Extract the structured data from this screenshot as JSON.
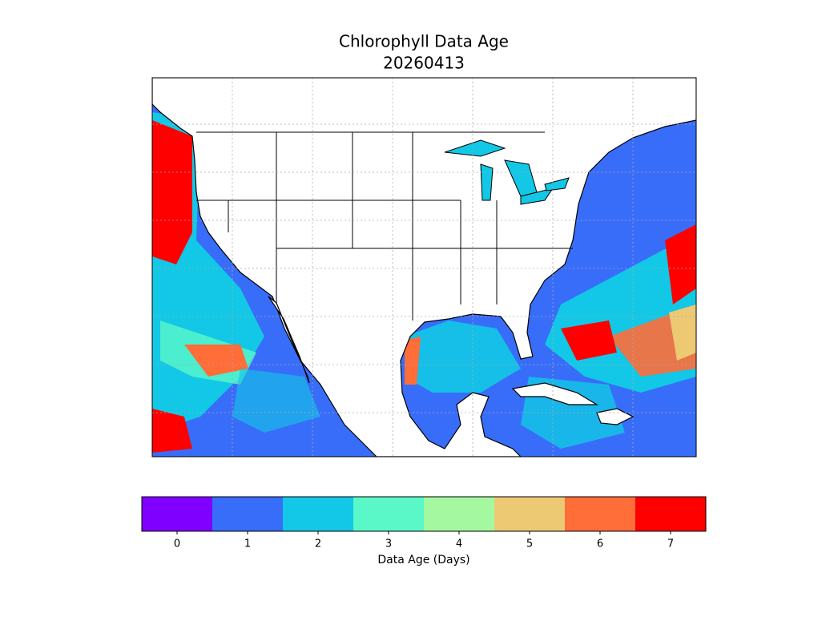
{
  "title": "Chlorophyll Data Age",
  "date": "20260413",
  "colorbar": {
    "label": "Data Age (Days)",
    "ticks": [
      0,
      1,
      2,
      3,
      4,
      5,
      6,
      7
    ],
    "colors": [
      "#7f00ff",
      "#386df9",
      "#12c8e6",
      "#5af8c8",
      "#a4f89f",
      "#edc974",
      "#ff6d38",
      "#ff0000"
    ]
  }
}
